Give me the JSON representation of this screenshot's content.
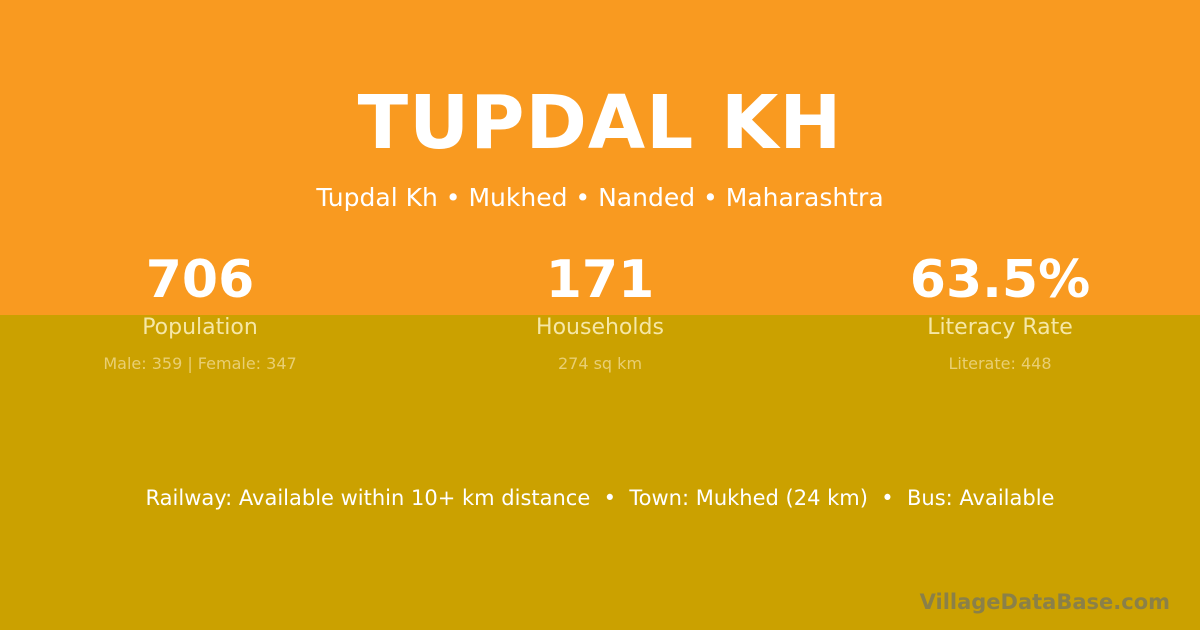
{
  "title": "TUPDAL KH",
  "subtitle": "Tupdal Kh • Mukhed • Nanded • Maharashtra",
  "stats": [
    {
      "value": "706",
      "label": "Population",
      "detail": "Male: 359 | Female: 347"
    },
    {
      "value": "171",
      "label": "Households",
      "detail": "274 sq km"
    },
    {
      "value": "63.5%",
      "label": "Literacy Rate",
      "detail": "Literate: 448"
    }
  ],
  "info": "Railway: Available within 10+ km distance  •  Town: Mukhed (24 km)  •  Bus: Available",
  "logo": "VillageDataBase.com",
  "colors": {
    "top": "#f99a20",
    "bottom": "#cba100"
  }
}
